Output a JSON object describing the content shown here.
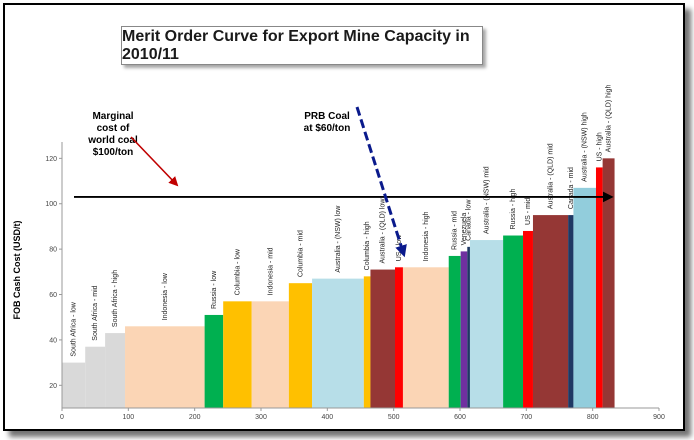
{
  "chart_data": {
    "type": "bar",
    "title": "Merit Order Curve for Export Mine Capacity in 2010/11",
    "ylabel": "FOB Cash Cost (USD/t)",
    "xlabel": "",
    "xlim": [
      0,
      900
    ],
    "ylim": [
      10,
      125
    ],
    "x_ticks": [
      0,
      100,
      200,
      300,
      400,
      500,
      600,
      700,
      800,
      900
    ],
    "y_ticks": [
      20,
      40,
      60,
      80,
      100,
      120
    ],
    "bars": [
      {
        "label": "South Africa - low",
        "x_start": 0,
        "x_end": 35,
        "value": 30,
        "color": "#d9d9d9"
      },
      {
        "label": "South Africa - mid",
        "x_start": 35,
        "x_end": 65,
        "value": 37,
        "color": "#d9d9d9"
      },
      {
        "label": "South Africa - high",
        "x_start": 65,
        "x_end": 95,
        "value": 43,
        "color": "#d9d9d9"
      },
      {
        "label": "Indonesia - low",
        "x_start": 95,
        "x_end": 215,
        "value": 46,
        "color": "#fbd5b5"
      },
      {
        "label": "Russia - low",
        "x_start": 215,
        "x_end": 243,
        "value": 51,
        "color": "#00b050"
      },
      {
        "label": "Columbia - low",
        "x_start": 243,
        "x_end": 286,
        "value": 57,
        "color": "#ffc000"
      },
      {
        "label": "Indonesia - mid",
        "x_start": 286,
        "x_end": 342,
        "value": 57,
        "color": "#fbd5b5"
      },
      {
        "label": "Columbia - mid",
        "x_start": 342,
        "x_end": 377,
        "value": 65,
        "color": "#ffc000"
      },
      {
        "label": "Australia - (NSW) low",
        "x_start": 377,
        "x_end": 455,
        "value": 67,
        "color": "#b7dee8"
      },
      {
        "label": "Columbia - high",
        "x_start": 455,
        "x_end": 465,
        "value": 68,
        "color": "#ffc000"
      },
      {
        "label": "Australia - (QLD) low",
        "x_start": 465,
        "x_end": 502,
        "value": 71,
        "color": "#953735"
      },
      {
        "label": "US - low",
        "x_start": 502,
        "x_end": 514,
        "value": 72,
        "color": "#ff0000"
      },
      {
        "label": "Indonesia - high",
        "x_start": 514,
        "x_end": 583,
        "value": 72,
        "color": "#fbd5b5"
      },
      {
        "label": "Russia - mid",
        "x_start": 583,
        "x_end": 601,
        "value": 77,
        "color": "#00b050"
      },
      {
        "label": "Venezuela",
        "x_start": 601,
        "x_end": 611,
        "value": 79,
        "color": "#7030a0"
      },
      {
        "label": "Canada - low",
        "x_start": 611,
        "x_end": 615,
        "value": 81,
        "color": "#1f3864"
      },
      {
        "label": "Australia - (NSW) mid",
        "x_start": 615,
        "x_end": 665,
        "value": 84,
        "color": "#b7dee8"
      },
      {
        "label": "Russia - high",
        "x_start": 665,
        "x_end": 695,
        "value": 86,
        "color": "#00b050"
      },
      {
        "label": "US - mid",
        "x_start": 695,
        "x_end": 710,
        "value": 88,
        "color": "#ff0000"
      },
      {
        "label": "Australia - (QLD) mid",
        "x_start": 710,
        "x_end": 763,
        "value": 95,
        "color": "#953735"
      },
      {
        "label": "Canada - mid",
        "x_start": 763,
        "x_end": 771,
        "value": 95,
        "color": "#1f3864"
      },
      {
        "label": "Australia - (NSW) high",
        "x_start": 771,
        "x_end": 805,
        "value": 107,
        "color": "#92cddc"
      },
      {
        "label": "US - high",
        "x_start": 805,
        "x_end": 815,
        "value": 116,
        "color": "#ff0000"
      },
      {
        "label": "Australia - (QLD) high",
        "x_start": 815,
        "x_end": 833,
        "value": 120,
        "color": "#953735"
      }
    ],
    "reference_line": {
      "y": 103,
      "x_start": 0,
      "x_end": 833
    },
    "annotations": [
      {
        "text": [
          "Marginal",
          "cost of",
          "world coal",
          "$100/ton"
        ],
        "color": "#c00000"
      },
      {
        "text": [
          "PRB Coal",
          "at $60/ton"
        ],
        "color": "#002060"
      }
    ]
  }
}
